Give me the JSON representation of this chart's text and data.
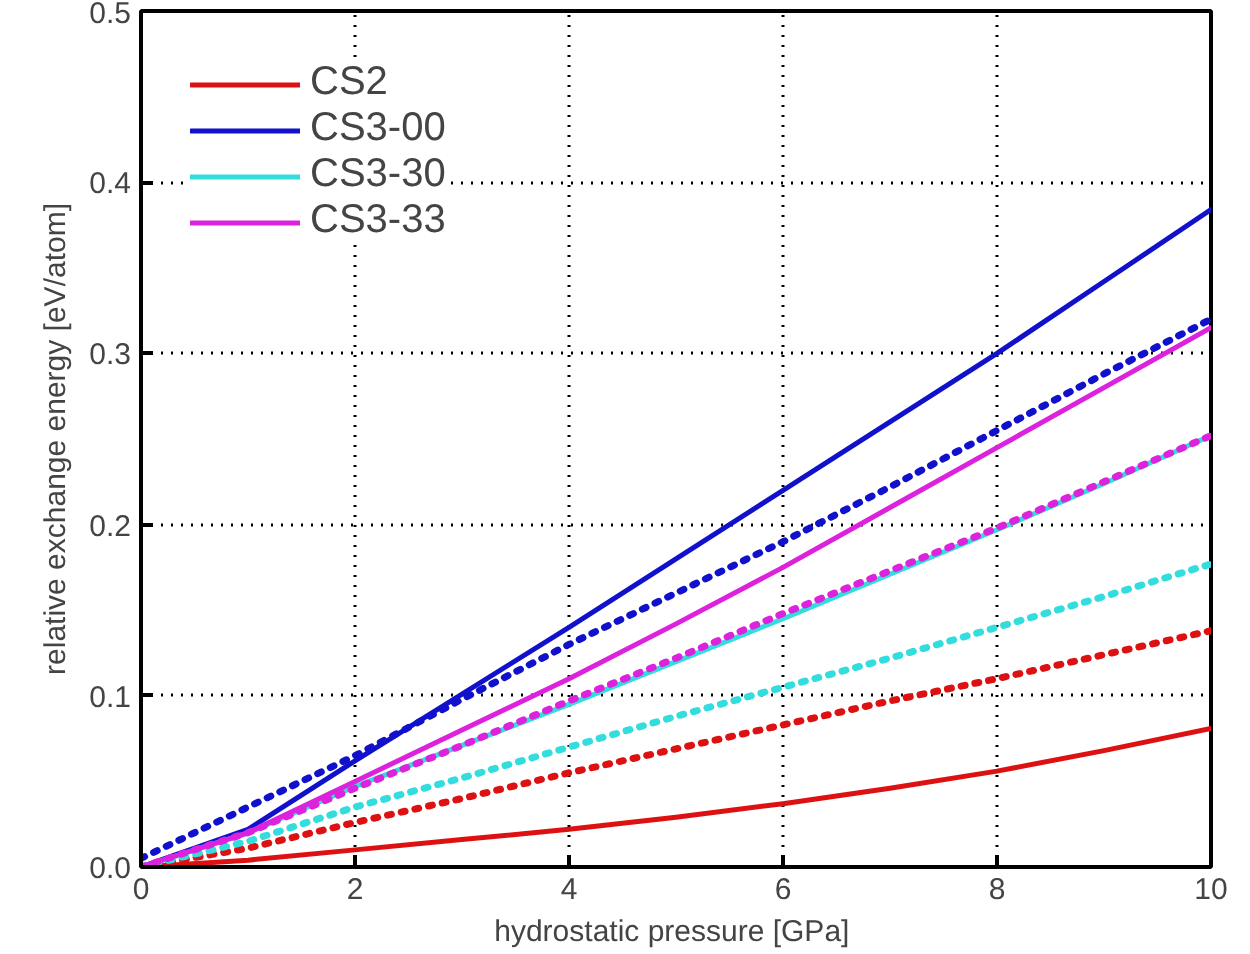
{
  "chart_data": {
    "type": "line",
    "xlabel": "hydrostatic  pressure [GPa]",
    "ylabel": "relative exchange energy [eV/atom]",
    "xlim": [
      0,
      10
    ],
    "ylim": [
      0,
      0.5
    ],
    "xticks": [
      0,
      2,
      4,
      6,
      8,
      10
    ],
    "yticks": [
      {
        "value": 0,
        "label": "0.0"
      },
      0.1,
      0.2,
      0.3,
      0.4,
      0.5
    ],
    "grid": true,
    "legend": "top left",
    "marker": "none",
    "x": [
      0,
      1,
      2,
      3,
      4,
      5,
      6,
      7,
      8,
      9,
      10
    ],
    "series": [
      {
        "name": "CS2",
        "color": "#dd1111",
        "line_style": "solid",
        "values": [
          0,
          0.004,
          0.01,
          0.016,
          0.022,
          0.029,
          0.037,
          0.046,
          0.056,
          0.068,
          0.081
        ]
      },
      {
        "name": "CS3-00",
        "color": "#1111cc",
        "line_style": "solid",
        "values": [
          0,
          0.022,
          0.062,
          0.101,
          0.14,
          0.18,
          0.22,
          0.26,
          0.3,
          0.342,
          0.384
        ]
      },
      {
        "name": "CS3-30",
        "color": "#33dddd",
        "line_style": "solid",
        "values": [
          0,
          0.02,
          0.047,
          0.071,
          0.095,
          0.12,
          0.145,
          0.171,
          0.197,
          0.224,
          0.252
        ]
      },
      {
        "name": "CS3-33",
        "color": "#dd22dd",
        "line_style": "solid",
        "values": [
          0,
          0.02,
          0.05,
          0.08,
          0.11,
          0.142,
          0.175,
          0.21,
          0.245,
          0.28,
          0.315
        ]
      },
      {
        "color": "#dd1111",
        "line_style": "dotted",
        "values": [
          0,
          0.011,
          0.026,
          0.04,
          0.055,
          0.069,
          0.083,
          0.097,
          0.11,
          0.124,
          0.138
        ]
      },
      {
        "color": "#1111cc",
        "line_style": "dotted",
        "values": [
          0.005,
          0.035,
          0.065,
          0.098,
          0.13,
          0.16,
          0.19,
          0.222,
          0.255,
          0.288,
          0.32
        ]
      },
      {
        "color": "#33dddd",
        "line_style": "dotted",
        "values": [
          0,
          0.015,
          0.035,
          0.052,
          0.07,
          0.088,
          0.105,
          0.122,
          0.14,
          0.158,
          0.177
        ]
      },
      {
        "color": "#dd22dd",
        "line_style": "dotted",
        "values": [
          0,
          0.02,
          0.046,
          0.071,
          0.097,
          0.122,
          0.148,
          0.173,
          0.198,
          0.225,
          0.252
        ]
      }
    ]
  }
}
